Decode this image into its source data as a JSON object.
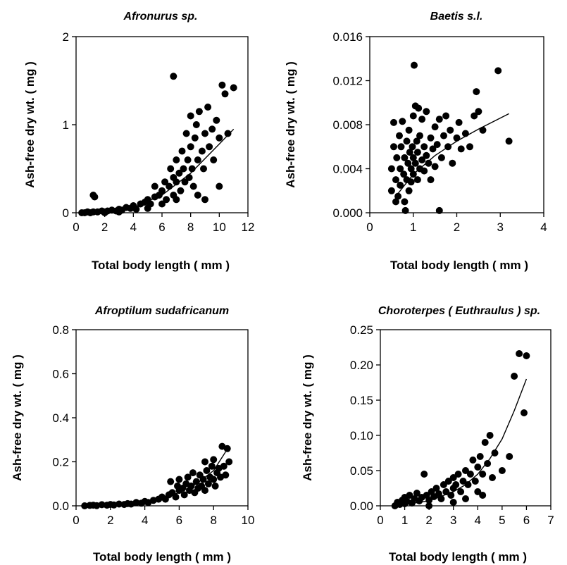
{
  "chart_data": [
    {
      "type": "scatter",
      "title": "Afronurus sp.",
      "xlabel": "Total body length ( mm )",
      "ylabel": "Ash-free dry wt. ( mg )",
      "xlim": [
        0,
        12
      ],
      "ylim": [
        0,
        2
      ],
      "xticks": [
        "0",
        "2",
        "4",
        "6",
        "8",
        "10",
        "12"
      ],
      "yticks": [
        "0",
        "1",
        "2"
      ],
      "fit_curve": [
        [
          0.3,
          0.0
        ],
        [
          2,
          0.01
        ],
        [
          4,
          0.06
        ],
        [
          6,
          0.2
        ],
        [
          8,
          0.45
        ],
        [
          10,
          0.78
        ],
        [
          11,
          0.95
        ]
      ],
      "points": [
        [
          0.4,
          0.0
        ],
        [
          0.6,
          0.0
        ],
        [
          0.8,
          0.01
        ],
        [
          1.0,
          0.0
        ],
        [
          1.2,
          0.01
        ],
        [
          1.2,
          0.2
        ],
        [
          1.3,
          0.18
        ],
        [
          1.5,
          0.01
        ],
        [
          1.8,
          0.02
        ],
        [
          2.0,
          0.01
        ],
        [
          2.2,
          0.02
        ],
        [
          2.5,
          0.03
        ],
        [
          2.8,
          0.02
        ],
        [
          3.0,
          0.04
        ],
        [
          3.2,
          0.03
        ],
        [
          3.5,
          0.06
        ],
        [
          3.8,
          0.05
        ],
        [
          4.0,
          0.08
        ],
        [
          4.2,
          0.04
        ],
        [
          4.5,
          0.1
        ],
        [
          4.8,
          0.12
        ],
        [
          5.0,
          0.15
        ],
        [
          5.2,
          0.1
        ],
        [
          5.5,
          0.18
        ],
        [
          5.5,
          0.3
        ],
        [
          5.8,
          0.2
        ],
        [
          6.0,
          0.25
        ],
        [
          6.0,
          0.1
        ],
        [
          6.2,
          0.35
        ],
        [
          6.3,
          0.15
        ],
        [
          6.5,
          0.3
        ],
        [
          6.6,
          0.5
        ],
        [
          6.8,
          0.4
        ],
        [
          6.8,
          0.2
        ],
        [
          7.0,
          0.35
        ],
        [
          7.0,
          0.6
        ],
        [
          7.2,
          0.45
        ],
        [
          7.3,
          0.25
        ],
        [
          7.4,
          0.7
        ],
        [
          7.5,
          0.5
        ],
        [
          7.6,
          0.35
        ],
        [
          7.7,
          0.9
        ],
        [
          7.8,
          0.6
        ],
        [
          7.9,
          0.4
        ],
        [
          8.0,
          0.75
        ],
        [
          8.0,
          1.1
        ],
        [
          8.1,
          0.5
        ],
        [
          8.2,
          0.3
        ],
        [
          8.3,
          0.85
        ],
        [
          8.4,
          1.0
        ],
        [
          8.5,
          0.6
        ],
        [
          8.6,
          1.15
        ],
        [
          8.8,
          0.7
        ],
        [
          8.9,
          0.5
        ],
        [
          9.0,
          0.9
        ],
        [
          9.2,
          1.2
        ],
        [
          9.3,
          0.75
        ],
        [
          9.5,
          0.95
        ],
        [
          9.6,
          0.6
        ],
        [
          9.8,
          1.05
        ],
        [
          10.0,
          0.85
        ],
        [
          10.0,
          0.3
        ],
        [
          10.2,
          1.45
        ],
        [
          10.4,
          1.35
        ],
        [
          10.6,
          0.9
        ],
        [
          11.0,
          1.42
        ],
        [
          6.8,
          1.55
        ],
        [
          2.0,
          0.0
        ],
        [
          3.0,
          0.01
        ],
        [
          5.0,
          0.05
        ],
        [
          7.0,
          0.15
        ],
        [
          8.5,
          0.2
        ],
        [
          9.0,
          0.15
        ]
      ]
    },
    {
      "type": "scatter",
      "title": "Baetis s.l.",
      "xlabel": "Total body length ( mm )",
      "ylabel": "Ash-free dry wt. ( mg )",
      "xlim": [
        0,
        4
      ],
      "ylim": [
        0,
        0.016
      ],
      "xticks": [
        "0",
        "1",
        "2",
        "3",
        "4"
      ],
      "yticks": [
        "0.000",
        "0.004",
        "0.008",
        "0.012",
        "0.016"
      ],
      "fit_curve": [
        [
          0.6,
          0.0015
        ],
        [
          1.0,
          0.0035
        ],
        [
          1.5,
          0.0052
        ],
        [
          2.0,
          0.0065
        ],
        [
          2.5,
          0.0076
        ],
        [
          3.2,
          0.009
        ]
      ],
      "points": [
        [
          0.5,
          0.002
        ],
        [
          0.5,
          0.004
        ],
        [
          0.55,
          0.006
        ],
        [
          0.55,
          0.0082
        ],
        [
          0.6,
          0.001
        ],
        [
          0.6,
          0.003
        ],
        [
          0.62,
          0.005
        ],
        [
          0.65,
          0.0015
        ],
        [
          0.68,
          0.007
        ],
        [
          0.7,
          0.0025
        ],
        [
          0.7,
          0.004
        ],
        [
          0.72,
          0.006
        ],
        [
          0.75,
          0.0083
        ],
        [
          0.78,
          0.0035
        ],
        [
          0.8,
          0.001
        ],
        [
          0.8,
          0.005
        ],
        [
          0.82,
          0.0002
        ],
        [
          0.85,
          0.003
        ],
        [
          0.85,
          0.0065
        ],
        [
          0.88,
          0.0045
        ],
        [
          0.9,
          0.002
        ],
        [
          0.9,
          0.0075
        ],
        [
          0.92,
          0.0055
        ],
        [
          0.95,
          0.004
        ],
        [
          0.95,
          0.0028
        ],
        [
          0.98,
          0.006
        ],
        [
          1.0,
          0.0035
        ],
        [
          1.0,
          0.005
        ],
        [
          1.0,
          0.0088
        ],
        [
          1.02,
          0.0134
        ],
        [
          1.05,
          0.0045
        ],
        [
          1.05,
          0.0097
        ],
        [
          1.08,
          0.0065
        ],
        [
          1.1,
          0.003
        ],
        [
          1.1,
          0.0055
        ],
        [
          1.12,
          0.0095
        ],
        [
          1.15,
          0.004
        ],
        [
          1.15,
          0.007
        ],
        [
          1.2,
          0.0048
        ],
        [
          1.2,
          0.0085
        ],
        [
          1.25,
          0.0038
        ],
        [
          1.25,
          0.006
        ],
        [
          1.3,
          0.0052
        ],
        [
          1.3,
          0.0092
        ],
        [
          1.35,
          0.0045
        ],
        [
          1.4,
          0.0068
        ],
        [
          1.4,
          0.003
        ],
        [
          1.45,
          0.0058
        ],
        [
          1.5,
          0.0078
        ],
        [
          1.5,
          0.0042
        ],
        [
          1.55,
          0.0062
        ],
        [
          1.6,
          0.0002
        ],
        [
          1.6,
          0.0085
        ],
        [
          1.65,
          0.005
        ],
        [
          1.7,
          0.007
        ],
        [
          1.75,
          0.0088
        ],
        [
          1.8,
          0.006
        ],
        [
          1.85,
          0.0075
        ],
        [
          1.9,
          0.0045
        ],
        [
          2.0,
          0.0068
        ],
        [
          2.05,
          0.0082
        ],
        [
          2.1,
          0.0058
        ],
        [
          2.2,
          0.0072
        ],
        [
          2.3,
          0.006
        ],
        [
          2.4,
          0.0088
        ],
        [
          2.45,
          0.011
        ],
        [
          2.5,
          0.0092
        ],
        [
          2.6,
          0.0075
        ],
        [
          2.95,
          0.0129
        ],
        [
          3.2,
          0.0065
        ]
      ]
    },
    {
      "type": "scatter",
      "title": "Afroptilum sudafricanum",
      "xlabel": "Total body length ( mm )",
      "ylabel": "Ash-free dry wt. ( mg )",
      "xlim": [
        0,
        10
      ],
      "ylim": [
        0,
        0.8
      ],
      "xticks": [
        "0",
        "2",
        "4",
        "6",
        "8",
        "10"
      ],
      "yticks": [
        "0.0",
        "0.2",
        "0.4",
        "0.6",
        "0.8"
      ],
      "fit_curve": [
        [
          0.4,
          0.0
        ],
        [
          2,
          0.005
        ],
        [
          4,
          0.02
        ],
        [
          5,
          0.035
        ],
        [
          6,
          0.06
        ],
        [
          7,
          0.1
        ],
        [
          8,
          0.16
        ],
        [
          8.7,
          0.245
        ]
      ],
      "points": [
        [
          0.5,
          0.0
        ],
        [
          0.8,
          0.002
        ],
        [
          1.0,
          0.003
        ],
        [
          1.2,
          0.001
        ],
        [
          1.5,
          0.005
        ],
        [
          1.8,
          0.003
        ],
        [
          2.0,
          0.006
        ],
        [
          2.2,
          0.004
        ],
        [
          2.5,
          0.008
        ],
        [
          2.8,
          0.006
        ],
        [
          3.0,
          0.01
        ],
        [
          3.2,
          0.008
        ],
        [
          3.5,
          0.015
        ],
        [
          3.8,
          0.012
        ],
        [
          4.0,
          0.02
        ],
        [
          4.2,
          0.015
        ],
        [
          4.5,
          0.025
        ],
        [
          4.8,
          0.03
        ],
        [
          5.0,
          0.04
        ],
        [
          5.2,
          0.03
        ],
        [
          5.4,
          0.05
        ],
        [
          5.5,
          0.11
        ],
        [
          5.6,
          0.06
        ],
        [
          5.8,
          0.04
        ],
        [
          5.9,
          0.09
        ],
        [
          6.0,
          0.07
        ],
        [
          6.0,
          0.12
        ],
        [
          6.2,
          0.08
        ],
        [
          6.3,
          0.05
        ],
        [
          6.4,
          0.1
        ],
        [
          6.5,
          0.13
        ],
        [
          6.6,
          0.07
        ],
        [
          6.7,
          0.09
        ],
        [
          6.8,
          0.15
        ],
        [
          6.9,
          0.06
        ],
        [
          7.0,
          0.11
        ],
        [
          7.1,
          0.08
        ],
        [
          7.2,
          0.14
        ],
        [
          7.3,
          0.09
        ],
        [
          7.4,
          0.12
        ],
        [
          7.5,
          0.07
        ],
        [
          7.6,
          0.16
        ],
        [
          7.7,
          0.1
        ],
        [
          7.8,
          0.13
        ],
        [
          7.9,
          0.18
        ],
        [
          8.0,
          0.12
        ],
        [
          8.0,
          0.21
        ],
        [
          8.1,
          0.09
        ],
        [
          8.2,
          0.15
        ],
        [
          8.3,
          0.17
        ],
        [
          8.4,
          0.13
        ],
        [
          8.5,
          0.27
        ],
        [
          8.6,
          0.18
        ],
        [
          8.7,
          0.14
        ],
        [
          8.8,
          0.26
        ],
        [
          8.9,
          0.2
        ],
        [
          7.5,
          0.2
        ]
      ]
    },
    {
      "type": "scatter",
      "title": "Choroterpes ( Euthraulus ) sp.",
      "xlabel": "Total body length ( mm )",
      "ylabel": "Ash-free dry wt. ( mg )",
      "xlim": [
        0,
        7
      ],
      "ylim": [
        0,
        0.25
      ],
      "xticks": [
        "0",
        "1",
        "2",
        "3",
        "4",
        "5",
        "6",
        "7"
      ],
      "yticks": [
        "0.00",
        "0.05",
        "0.10",
        "0.15",
        "0.20",
        "0.25"
      ],
      "fit_curve": [
        [
          0.6,
          0.0
        ],
        [
          2.0,
          0.007
        ],
        [
          3.0,
          0.02
        ],
        [
          3.5,
          0.03
        ],
        [
          4.0,
          0.045
        ],
        [
          4.5,
          0.067
        ],
        [
          5.0,
          0.095
        ],
        [
          5.5,
          0.135
        ],
        [
          6.0,
          0.18
        ]
      ],
      "points": [
        [
          0.6,
          0.0
        ],
        [
          0.7,
          0.005
        ],
        [
          0.8,
          0.002
        ],
        [
          0.9,
          0.008
        ],
        [
          1.0,
          0.003
        ],
        [
          1.0,
          0.012
        ],
        [
          1.1,
          0.006
        ],
        [
          1.2,
          0.015
        ],
        [
          1.3,
          0.004
        ],
        [
          1.4,
          0.01
        ],
        [
          1.5,
          0.018
        ],
        [
          1.6,
          0.007
        ],
        [
          1.7,
          0.012
        ],
        [
          1.8,
          0.045
        ],
        [
          1.9,
          0.015
        ],
        [
          2.0,
          0.008
        ],
        [
          2.1,
          0.02
        ],
        [
          2.2,
          0.013
        ],
        [
          2.3,
          0.025
        ],
        [
          2.4,
          0.017
        ],
        [
          2.5,
          0.01
        ],
        [
          2.6,
          0.03
        ],
        [
          2.7,
          0.02
        ],
        [
          2.8,
          0.035
        ],
        [
          2.9,
          0.015
        ],
        [
          3.0,
          0.025
        ],
        [
          3.0,
          0.04
        ],
        [
          3.1,
          0.03
        ],
        [
          3.2,
          0.045
        ],
        [
          3.3,
          0.02
        ],
        [
          3.4,
          0.035
        ],
        [
          3.5,
          0.05
        ],
        [
          3.5,
          0.01
        ],
        [
          3.6,
          0.03
        ],
        [
          3.7,
          0.045
        ],
        [
          3.8,
          0.065
        ],
        [
          3.9,
          0.035
        ],
        [
          4.0,
          0.055
        ],
        [
          4.0,
          0.02
        ],
        [
          4.1,
          0.07
        ],
        [
          4.2,
          0.045
        ],
        [
          4.3,
          0.09
        ],
        [
          4.4,
          0.06
        ],
        [
          4.5,
          0.1
        ],
        [
          4.6,
          0.04
        ],
        [
          4.7,
          0.075
        ],
        [
          5.0,
          0.05
        ],
        [
          5.3,
          0.07
        ],
        [
          5.5,
          0.184
        ],
        [
          5.7,
          0.216
        ],
        [
          5.9,
          0.132
        ],
        [
          6.0,
          0.213
        ],
        [
          2.0,
          0.0
        ],
        [
          3.0,
          0.005
        ],
        [
          4.2,
          0.015
        ]
      ]
    }
  ]
}
